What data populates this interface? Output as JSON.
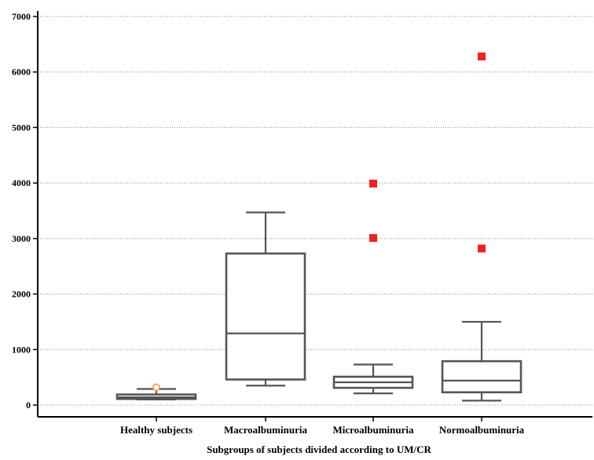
{
  "chart_data": {
    "type": "box",
    "title": "",
    "xlabel": "Subgroups of subjects divided according to UM/CR",
    "ylabel": "",
    "ylim": [
      0,
      7000
    ],
    "yticks": [
      0,
      1000,
      2000,
      3000,
      4000,
      5000,
      6000,
      7000
    ],
    "grid": "horizontal dotted",
    "categories": [
      "Healthy subjects",
      "Macroalbuminuria",
      "Microalbuminuria",
      "Normoalbuminuria"
    ],
    "boxes": [
      {
        "category": "Healthy subjects",
        "whisker_low": 100,
        "q1": 110,
        "median": 140,
        "q3": 190,
        "whisker_high": 290,
        "outliers": [
          {
            "value": 320,
            "style": "near"
          }
        ]
      },
      {
        "category": "Macroalbuminuria",
        "whisker_low": 350,
        "q1": 460,
        "median": 1290,
        "q3": 2730,
        "whisker_high": 3470,
        "outliers": []
      },
      {
        "category": "Microalbuminuria",
        "whisker_low": 210,
        "q1": 310,
        "median": 410,
        "q3": 510,
        "whisker_high": 730,
        "outliers": [
          {
            "value": 3010,
            "style": "far"
          },
          {
            "value": 3990,
            "style": "far"
          }
        ]
      },
      {
        "category": "Normoalbuminuria",
        "whisker_low": 80,
        "q1": 230,
        "median": 440,
        "q3": 790,
        "whisker_high": 1500,
        "outliers": [
          {
            "value": 2820,
            "style": "far"
          },
          {
            "value": 6280,
            "style": "far"
          }
        ]
      }
    ],
    "colors": {
      "box": "#555555",
      "far_outlier": "#ee2222",
      "near_outlier": "#f39c5a",
      "grid": "#888888",
      "axis": "#000000"
    }
  }
}
